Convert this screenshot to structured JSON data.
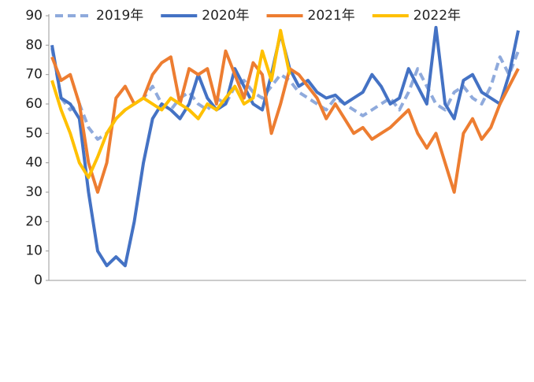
{
  "chart_data": {
    "type": "line",
    "ylim": [
      0,
      90
    ],
    "yticks": [
      0,
      10,
      20,
      30,
      40,
      50,
      60,
      70,
      80,
      90
    ],
    "series": [
      {
        "name": "2019年",
        "color": "#8faadc",
        "dash": true,
        "values": [
          79,
          62,
          58,
          60,
          52,
          48,
          50,
          55,
          58,
          60,
          62,
          66,
          60,
          58,
          62,
          64,
          60,
          58,
          62,
          60,
          66,
          68,
          64,
          62,
          66,
          70,
          68,
          64,
          62,
          60,
          58,
          62,
          60,
          58,
          56,
          58,
          60,
          62,
          58,
          64,
          72,
          66,
          60,
          58,
          64,
          66,
          62,
          60,
          66,
          76,
          70,
          78
        ]
      },
      {
        "name": "2020年",
        "color": "#4472c4",
        "dash": false,
        "values": [
          80,
          62,
          60,
          55,
          30,
          10,
          5,
          8,
          5,
          20,
          40,
          55,
          60,
          58,
          55,
          60,
          70,
          62,
          58,
          60,
          72,
          66,
          60,
          58,
          70,
          84,
          72,
          66,
          68,
          64,
          62,
          63,
          60,
          62,
          64,
          70,
          66,
          60,
          62,
          72,
          66,
          60,
          86,
          60,
          55,
          68,
          70,
          64,
          62,
          60,
          70,
          85
        ]
      },
      {
        "name": "2021年",
        "color": "#ed7d31",
        "dash": false,
        "values": [
          76,
          68,
          70,
          60,
          40,
          30,
          40,
          62,
          66,
          60,
          62,
          70,
          74,
          76,
          60,
          72,
          70,
          72,
          60,
          78,
          70,
          62,
          74,
          70,
          50,
          60,
          72,
          70,
          66,
          62,
          55,
          60,
          55,
          50,
          52,
          48,
          50,
          52,
          55,
          58,
          50,
          45,
          50,
          40,
          30,
          50,
          55,
          48,
          52,
          60,
          66,
          72
        ]
      },
      {
        "name": "2022年",
        "color": "#ffc000",
        "dash": false,
        "values": [
          68,
          58,
          50,
          40,
          35,
          42,
          50,
          55,
          58,
          60,
          62,
          60,
          58,
          62,
          60,
          58,
          55,
          60,
          58,
          62,
          66,
          60,
          62,
          78,
          68,
          85,
          70
        ]
      }
    ]
  }
}
